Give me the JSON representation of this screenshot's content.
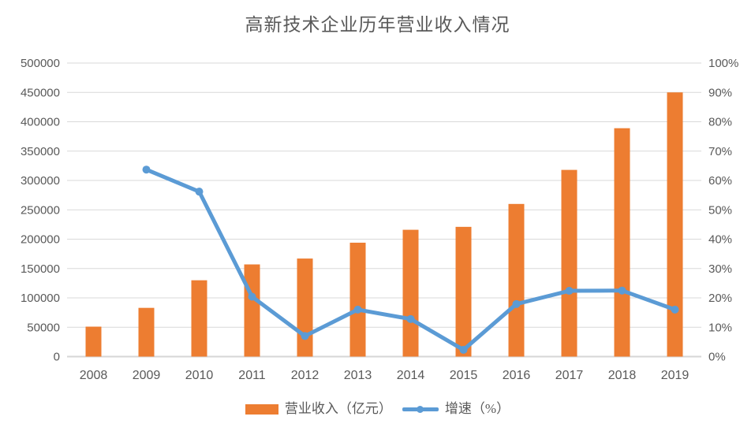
{
  "chart_data": {
    "type": "combo-bar-line",
    "title": "高新技术企业历年营业收入情况",
    "categories": [
      "2008",
      "2009",
      "2010",
      "2011",
      "2012",
      "2013",
      "2014",
      "2015",
      "2016",
      "2017",
      "2018",
      "2019"
    ],
    "series": [
      {
        "name": "营业收入（亿元）",
        "type": "bar",
        "axis": "left",
        "color": "#ED7D31",
        "values": [
          51000,
          83000,
          130000,
          157000,
          167000,
          194000,
          216000,
          221000,
          260000,
          318000,
          389000,
          450000
        ]
      },
      {
        "name": "增速（%）",
        "type": "line",
        "axis": "right",
        "color": "#5B9BD5",
        "values": [
          null,
          63.7,
          56.2,
          20.4,
          7.0,
          16.0,
          12.8,
          2.3,
          17.9,
          22.4,
          22.5,
          16.0
        ]
      }
    ],
    "left_axis": {
      "min": 0,
      "max": 500000,
      "step": 50000,
      "ticks": [
        "0",
        "50000",
        "100000",
        "150000",
        "200000",
        "250000",
        "300000",
        "350000",
        "400000",
        "450000",
        "500000"
      ]
    },
    "right_axis": {
      "min": 0,
      "max": 100,
      "step": 10,
      "ticks": [
        "0%",
        "10%",
        "20%",
        "30%",
        "40%",
        "50%",
        "60%",
        "70%",
        "80%",
        "90%",
        "100%"
      ]
    },
    "grid": true,
    "legend_position": "bottom",
    "colors": {
      "grid": "#D9D9D9",
      "axis_line": "#D6D6D6",
      "text": "#595959",
      "background": "#FFFFFF"
    }
  }
}
